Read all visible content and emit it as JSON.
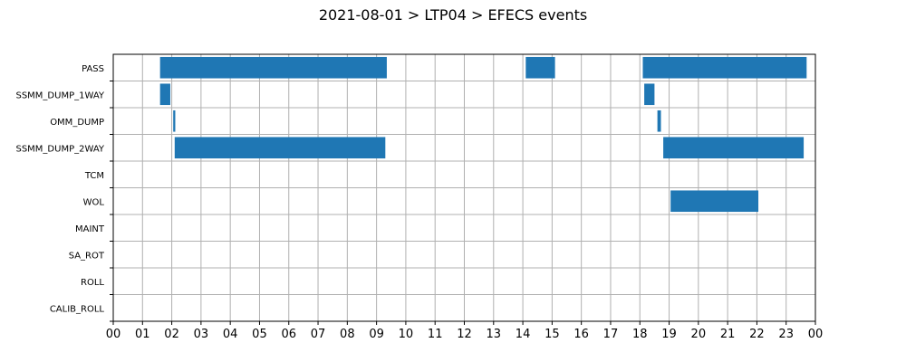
{
  "chart_data": {
    "type": "bar",
    "orientation": "horizontal-timeline",
    "title": "2021-08-01 > LTP04 > EFECS events",
    "xlabel": "",
    "ylabel": "",
    "xlim": [
      0,
      24
    ],
    "x_unit": "hour",
    "grid": true,
    "legend": "none",
    "bar_color": "#1f77b4",
    "x_tick_labels": [
      "00",
      "01",
      "02",
      "03",
      "04",
      "05",
      "06",
      "07",
      "08",
      "09",
      "10",
      "11",
      "12",
      "13",
      "14",
      "15",
      "16",
      "17",
      "18",
      "19",
      "20",
      "21",
      "22",
      "23",
      "00"
    ],
    "categories": [
      "PASS",
      "SSMM_DUMP_1WAY",
      "OMM_DUMP",
      "SSMM_DUMP_2WAY",
      "TCM",
      "WOL",
      "MAINT",
      "SA_ROT",
      "ROLL",
      "CALIB_ROLL"
    ],
    "series": [
      {
        "category": "PASS",
        "intervals": [
          [
            1.6,
            9.35
          ],
          [
            14.1,
            15.1
          ],
          [
            18.1,
            23.7
          ]
        ]
      },
      {
        "category": "SSMM_DUMP_1WAY",
        "intervals": [
          [
            1.6,
            1.95
          ],
          [
            18.15,
            18.5
          ]
        ]
      },
      {
        "category": "OMM_DUMP",
        "intervals": [
          [
            2.05,
            2.12
          ],
          [
            18.6,
            18.72
          ]
        ]
      },
      {
        "category": "SSMM_DUMP_2WAY",
        "intervals": [
          [
            2.1,
            9.3
          ],
          [
            18.8,
            23.6
          ]
        ]
      },
      {
        "category": "TCM",
        "intervals": []
      },
      {
        "category": "WOL",
        "intervals": [
          [
            19.05,
            22.05
          ]
        ]
      },
      {
        "category": "MAINT",
        "intervals": []
      },
      {
        "category": "SA_ROT",
        "intervals": []
      },
      {
        "category": "ROLL",
        "intervals": []
      },
      {
        "category": "CALIB_ROLL",
        "intervals": []
      }
    ]
  }
}
